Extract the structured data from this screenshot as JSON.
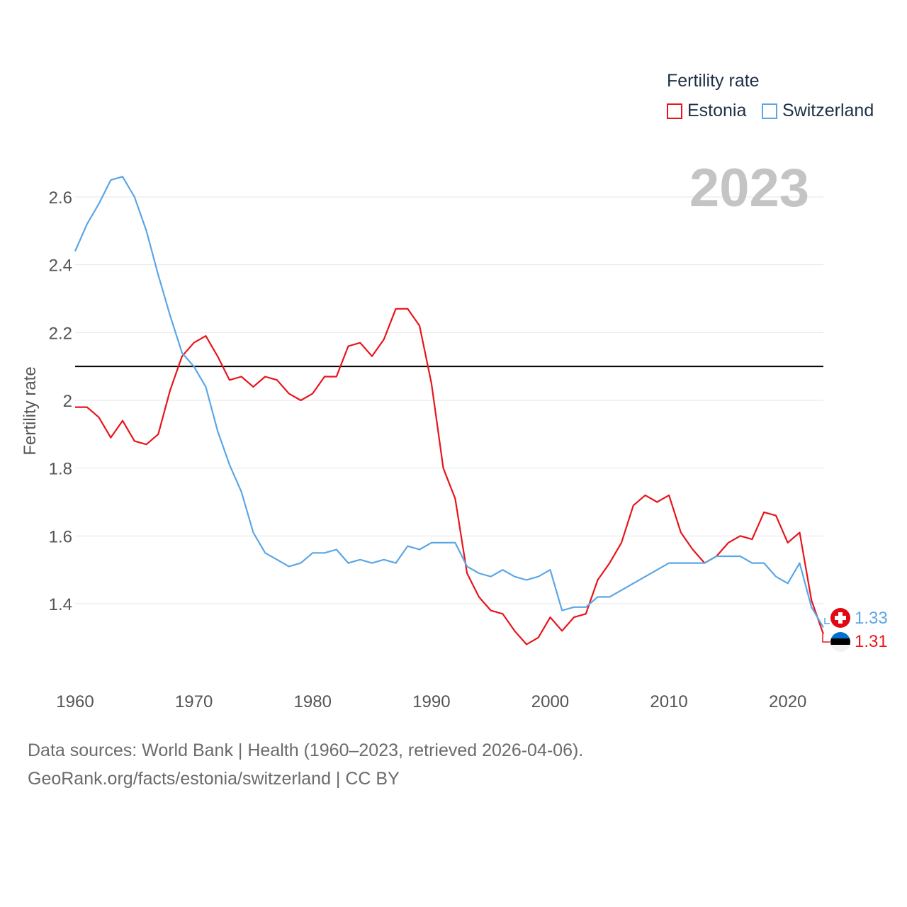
{
  "legend": {
    "title": "Fertility rate",
    "items": [
      {
        "label": "Estonia",
        "color": "#e8141c"
      },
      {
        "label": "Switzerland",
        "color": "#5ba6e6"
      }
    ]
  },
  "year_label": "2023",
  "end_labels": {
    "switzerland": "1.33",
    "estonia": "1.31"
  },
  "source": {
    "line1": "Data sources: World Bank | Health (1960–2023, retrieved 2026-04-06).",
    "line2": "GeoRank.org/facts/estonia/switzerland | CC BY"
  },
  "chart_data": {
    "type": "line",
    "title": "Fertility rate",
    "xlabel": "",
    "ylabel": "Fertility rate",
    "xlim": [
      1960,
      2023
    ],
    "ylim": [
      1.2,
      2.75
    ],
    "x_ticks": [
      "1960",
      "1970",
      "1980",
      "1990",
      "2000",
      "2010",
      "2020"
    ],
    "y_ticks": [
      "1.4",
      "1.6",
      "1.8",
      "2",
      "2.2",
      "2.4",
      "2.6"
    ],
    "reference_line": 2.1,
    "grid": true,
    "x": [
      1960,
      1961,
      1962,
      1963,
      1964,
      1965,
      1966,
      1967,
      1968,
      1969,
      1970,
      1971,
      1972,
      1973,
      1974,
      1975,
      1976,
      1977,
      1978,
      1979,
      1980,
      1981,
      1982,
      1983,
      1984,
      1985,
      1986,
      1987,
      1988,
      1989,
      1990,
      1991,
      1992,
      1993,
      1994,
      1995,
      1996,
      1997,
      1998,
      1999,
      2000,
      2001,
      2002,
      2003,
      2004,
      2005,
      2006,
      2007,
      2008,
      2009,
      2010,
      2011,
      2012,
      2013,
      2014,
      2015,
      2016,
      2017,
      2018,
      2019,
      2020,
      2021,
      2022,
      2023
    ],
    "series": [
      {
        "name": "Estonia",
        "color": "#e8141c",
        "values": [
          1.98,
          1.98,
          1.95,
          1.89,
          1.94,
          1.88,
          1.87,
          1.9,
          2.03,
          2.13,
          2.17,
          2.19,
          2.13,
          2.06,
          2.07,
          2.04,
          2.07,
          2.06,
          2.02,
          2.0,
          2.02,
          2.07,
          2.07,
          2.16,
          2.17,
          2.13,
          2.18,
          2.27,
          2.27,
          2.22,
          2.05,
          1.8,
          1.71,
          1.49,
          1.42,
          1.38,
          1.37,
          1.32,
          1.28,
          1.3,
          1.36,
          1.32,
          1.36,
          1.37,
          1.47,
          1.52,
          1.58,
          1.69,
          1.72,
          1.7,
          1.72,
          1.61,
          1.56,
          1.52,
          1.54,
          1.58,
          1.6,
          1.59,
          1.67,
          1.66,
          1.58,
          1.61,
          1.41,
          1.31
        ]
      },
      {
        "name": "Switzerland",
        "color": "#5ba6e6",
        "values": [
          2.44,
          2.52,
          2.58,
          2.65,
          2.66,
          2.6,
          2.5,
          2.37,
          2.25,
          2.14,
          2.1,
          2.04,
          1.91,
          1.81,
          1.73,
          1.61,
          1.55,
          1.53,
          1.51,
          1.52,
          1.55,
          1.55,
          1.56,
          1.52,
          1.53,
          1.52,
          1.53,
          1.52,
          1.57,
          1.56,
          1.58,
          1.58,
          1.58,
          1.51,
          1.49,
          1.48,
          1.5,
          1.48,
          1.47,
          1.48,
          1.5,
          1.38,
          1.39,
          1.39,
          1.42,
          1.42,
          1.44,
          1.46,
          1.48,
          1.5,
          1.52,
          1.52,
          1.52,
          1.52,
          1.54,
          1.54,
          1.54,
          1.52,
          1.52,
          1.48,
          1.46,
          1.52,
          1.39,
          1.33
        ]
      }
    ]
  }
}
